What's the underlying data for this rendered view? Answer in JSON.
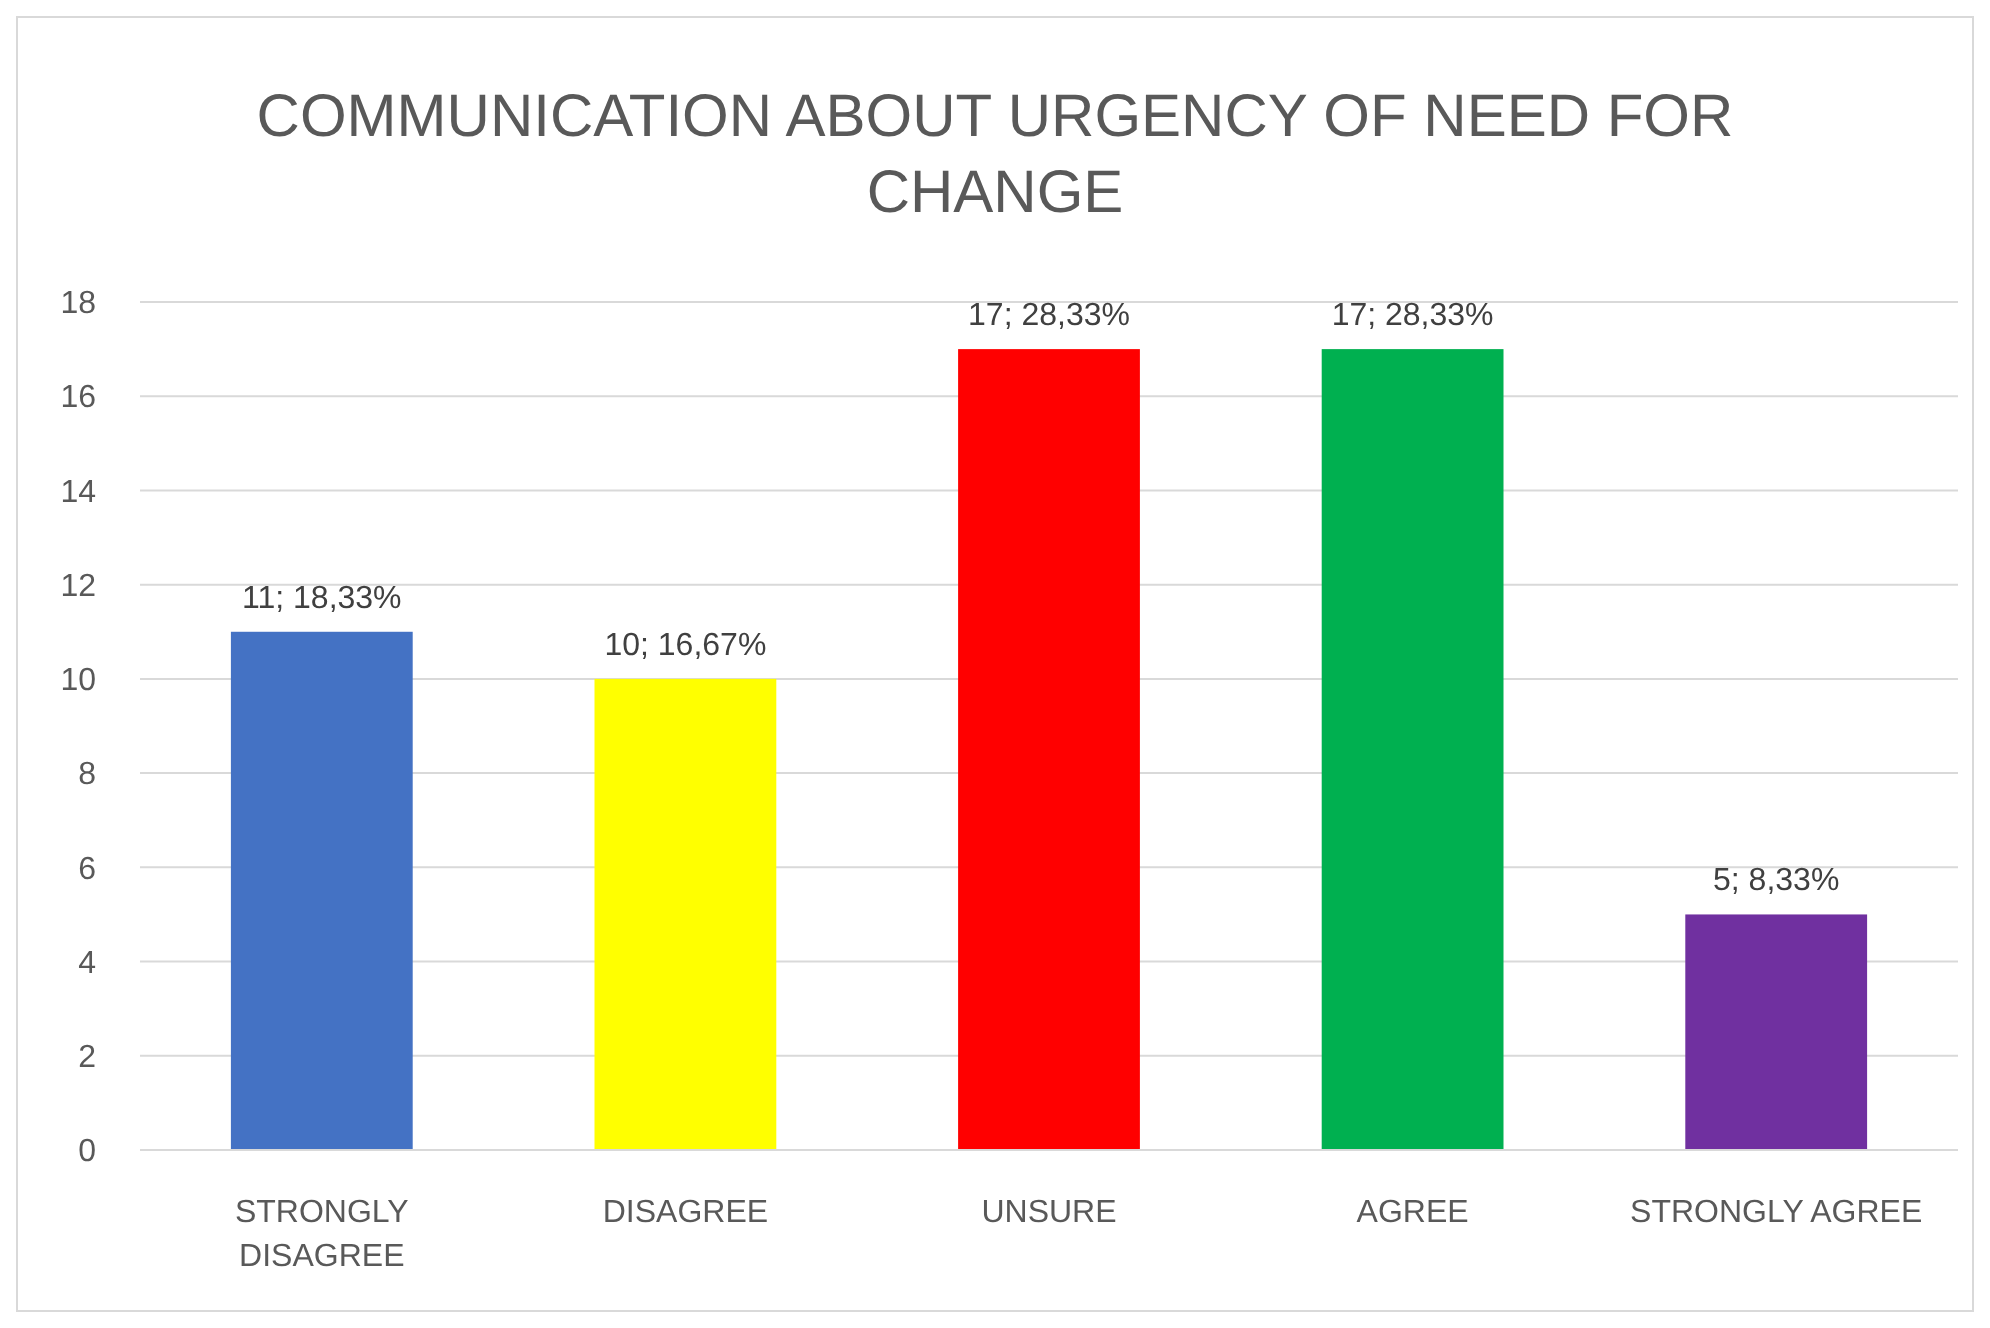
{
  "chart_data": {
    "type": "bar",
    "title": "COMMUNICATION ABOUT URGENCY OF NEED FOR CHANGE",
    "categories": [
      "STRONGLY DISAGREE",
      "DISAGREE",
      "UNSURE",
      "AGREE",
      "STRONGLY AGREE"
    ],
    "values": [
      11,
      10,
      17,
      17,
      5
    ],
    "colors": [
      "#4472c4",
      "#ffff00",
      "#ff0000",
      "#00b050",
      "#7030a0"
    ],
    "value_labels": [
      "11; 18,33%",
      "10; 16,67%",
      "17; 28,33%",
      "17; 28,33%",
      "5; 8,33%"
    ],
    "ylim": [
      0,
      18
    ],
    "yticks": [
      0,
      2,
      4,
      6,
      8,
      10,
      12,
      14,
      16,
      18
    ],
    "grid": "y"
  }
}
